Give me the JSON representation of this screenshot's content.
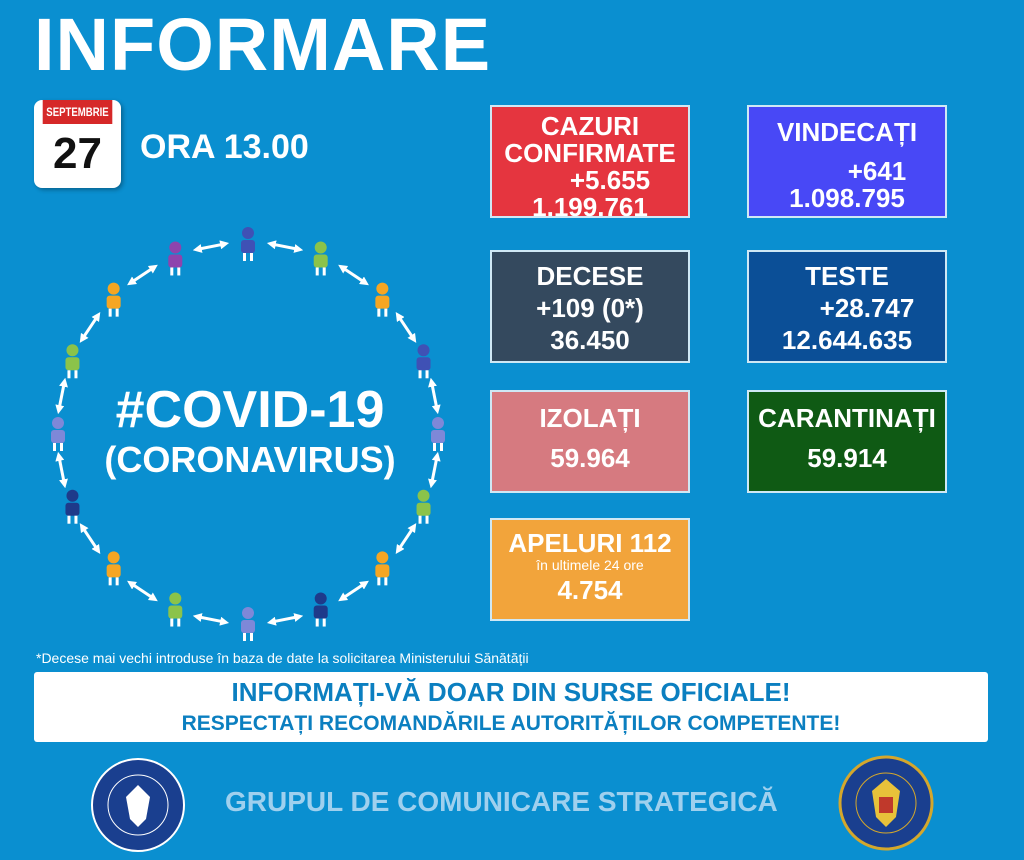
{
  "title": "INFORMARE",
  "date": {
    "month": "SEPTEMBRIE",
    "day": "27"
  },
  "time": "ORA 13.00",
  "covid": {
    "line1": "#COVID-19",
    "line2": "(CORONAVIRUS)"
  },
  "boxes": {
    "cazuri": {
      "label1": "CAZURI",
      "label2": "CONFIRMATE",
      "delta": "+5.655",
      "total": "1.199.761",
      "color": "#e5353f"
    },
    "vindecati": {
      "label": "VINDECAȚI",
      "delta": "+641",
      "total": "1.098.795",
      "color": "#4848f6"
    },
    "decese": {
      "label": "DECESE",
      "delta": "+109 (0*)",
      "total": "36.450",
      "color": "#34495e"
    },
    "teste": {
      "label": "TESTE",
      "delta": "+28.747",
      "total": "12.644.635",
      "color": "#0b4f97"
    },
    "izolati": {
      "label": "IZOLAȚI",
      "total": "59.964",
      "color": "#d67a80"
    },
    "carantinati": {
      "label": "CARANTINAȚI",
      "total": "59.914",
      "color": "#0f5a14"
    },
    "apeluri": {
      "label": "APELURI 112",
      "sub": "în ultimele 24 ore",
      "total": "4.754",
      "color": "#f2a43b"
    }
  },
  "note": "*Decese mai vechi introduse în baza de date la solicitarea Ministerului Sănătății",
  "banner": {
    "line1": "INFORMAȚI-VĂ DOAR DIN SURSE OFICIALE!",
    "line2": "RESPECTAȚI RECOMANDĂRILE AUTORITĂȚILOR COMPETENTE!"
  },
  "footer": "GRUPUL DE COMUNICARE STRATEGICĂ",
  "logos": {
    "left": "GUVERNUL ROMÂNIEI",
    "right": "DEPARTAMENTUL PENTRU SITUAȚII DE URGENȚĂ M.A.I."
  },
  "figure_colors": [
    "#3f51b5",
    "#8bc34a",
    "#f5a623",
    "#3f51b5",
    "#7e88d8",
    "#8bc34a",
    "#f5a623",
    "#1e3a8a",
    "#7e88d8",
    "#8bc34a",
    "#f5a623",
    "#1e3a8a",
    "#7e88d8",
    "#8bc34a",
    "#f5a623",
    "#8e44ad"
  ]
}
